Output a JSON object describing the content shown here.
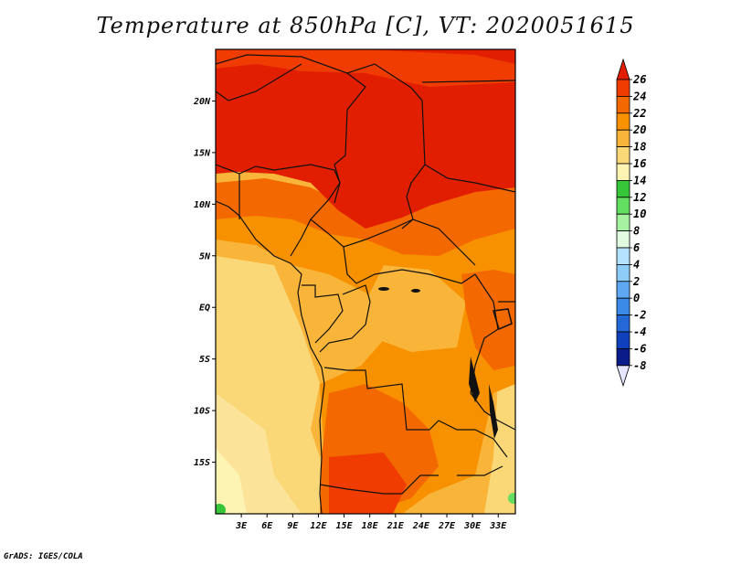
{
  "title": "Temperature at 850hPa [C], VT: 2020051615",
  "credit": "GrADS: IGES/COLA",
  "map": {
    "lat_range": [
      -20,
      25
    ],
    "lon_range": [
      0,
      35
    ],
    "lat_ticks": [
      "20N",
      "15N",
      "10N",
      "5N",
      "EQ",
      "5S",
      "10S",
      "15S"
    ],
    "lon_ticks": [
      "3E",
      "6E",
      "9E",
      "12E",
      "15E",
      "18E",
      "21E",
      "24E",
      "27E",
      "30E",
      "33E"
    ]
  },
  "colorbar": {
    "labels": [
      "26",
      "24",
      "22",
      "20",
      "18",
      "16",
      "14",
      "12",
      "10",
      "8",
      "6",
      "4",
      "2",
      "0",
      "-2",
      "-4",
      "-6",
      "-8"
    ],
    "colors": [
      "#e11e00",
      "#f03c00",
      "#f46800",
      "#f79100",
      "#f9b43a",
      "#fad878",
      "#fdf3b3",
      "#37c63a",
      "#64de60",
      "#a6f2a0",
      "#e0fbe0",
      "#b5e3ff",
      "#8ecdfa",
      "#5ea7f2",
      "#3c8ae8",
      "#2468d8",
      "#1040bb",
      "#0a1b8a",
      "#000f6a"
    ]
  }
}
